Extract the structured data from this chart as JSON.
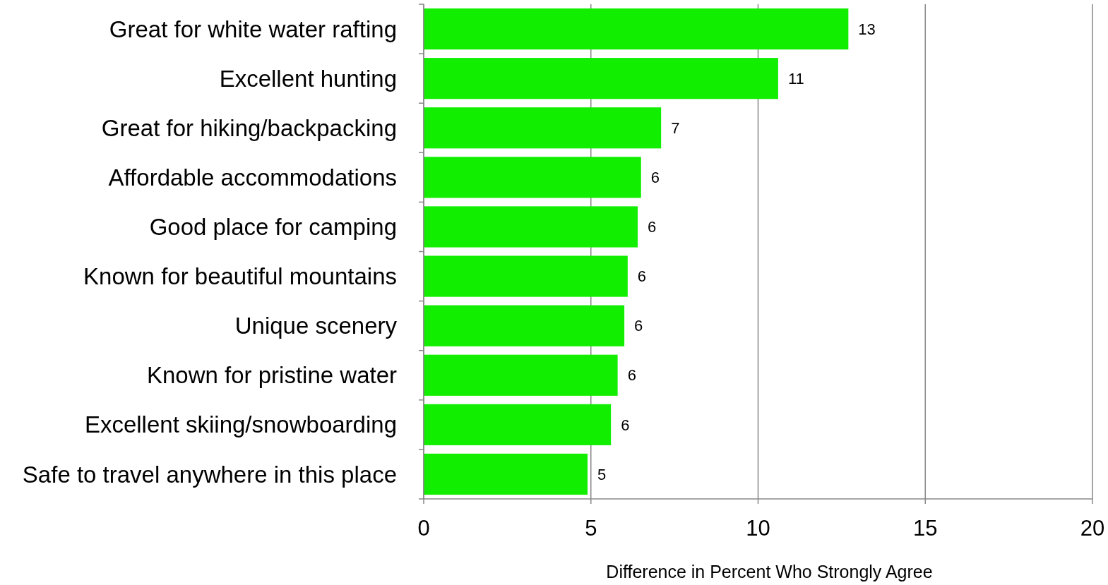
{
  "chart_data": {
    "type": "bar",
    "orientation": "horizontal",
    "xlabel": "Difference in Percent Who Strongly Agree",
    "categories": [
      "Great for white water rafting",
      "Excellent hunting",
      "Great for hiking/backpacking",
      "Affordable accommodations",
      "Good place for camping",
      "Known for beautiful mountains",
      "Unique scenery",
      "Known for pristine water",
      "Excellent skiing/snowboarding",
      "Safe to travel anywhere in this place"
    ],
    "values": [
      12.7,
      10.6,
      7.1,
      6.5,
      6.4,
      6.1,
      6.0,
      5.8,
      5.6,
      4.9
    ],
    "value_labels": [
      "13",
      "11",
      "7",
      "6",
      "6",
      "6",
      "6",
      "6",
      "6",
      "5"
    ],
    "color": "#11ee00",
    "xlim": [
      0,
      20
    ],
    "xticks": [
      0,
      5,
      10,
      15,
      20
    ],
    "grid": "x"
  }
}
